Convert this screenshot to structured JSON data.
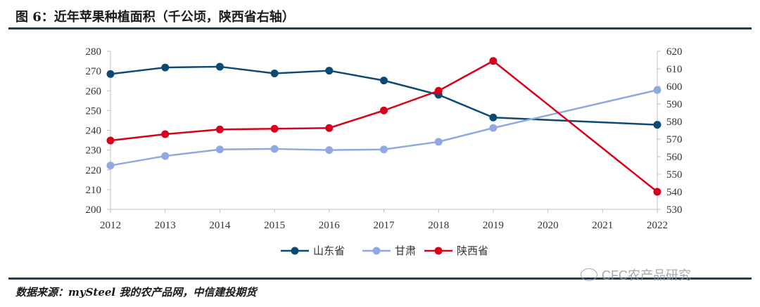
{
  "header": {
    "title": "图 6：近年苹果种植面积（千公顷，陕西省右轴）"
  },
  "footer": {
    "source": "数据来源：mySteel 我的农产品网，中信建投期货",
    "watermark": "CFC农产品研究"
  },
  "chart_data": {
    "type": "line",
    "x": [
      2012,
      2013,
      2014,
      2015,
      2016,
      2017,
      2018,
      2019,
      2020,
      2021,
      2022
    ],
    "y_left": {
      "ylim": [
        200,
        280
      ],
      "ticks": [
        200,
        210,
        220,
        230,
        240,
        250,
        260,
        270,
        280
      ]
    },
    "y_right": {
      "ylim": [
        530,
        620
      ],
      "ticks": [
        530,
        540,
        550,
        560,
        570,
        580,
        590,
        600,
        610,
        620
      ]
    },
    "legend_position": "bottom",
    "series": [
      {
        "name": "山东省",
        "axis": "left",
        "color": "#0d4a73",
        "x": [
          2012,
          2013,
          2014,
          2015,
          2016,
          2017,
          2018,
          2019,
          2022
        ],
        "values": [
          268.5,
          271.8,
          272.2,
          268.8,
          270.2,
          265.2,
          258,
          246.5,
          242.8
        ]
      },
      {
        "name": "甘肃",
        "axis": "left",
        "color": "#8fa9e0",
        "x": [
          2012,
          2013,
          2014,
          2015,
          2016,
          2017,
          2018,
          2019,
          2022
        ],
        "values": [
          222.2,
          227,
          230.3,
          230.6,
          230,
          230.3,
          234.2,
          241.2,
          260.4
        ]
      },
      {
        "name": "陕西省",
        "axis": "right",
        "color": "#d9001b",
        "x": [
          2012,
          2013,
          2014,
          2015,
          2016,
          2017,
          2018,
          2019,
          2022
        ],
        "values": [
          569.2,
          572.8,
          575.5,
          575.9,
          576.3,
          586.3,
          597.5,
          614.5,
          540
        ]
      }
    ]
  }
}
